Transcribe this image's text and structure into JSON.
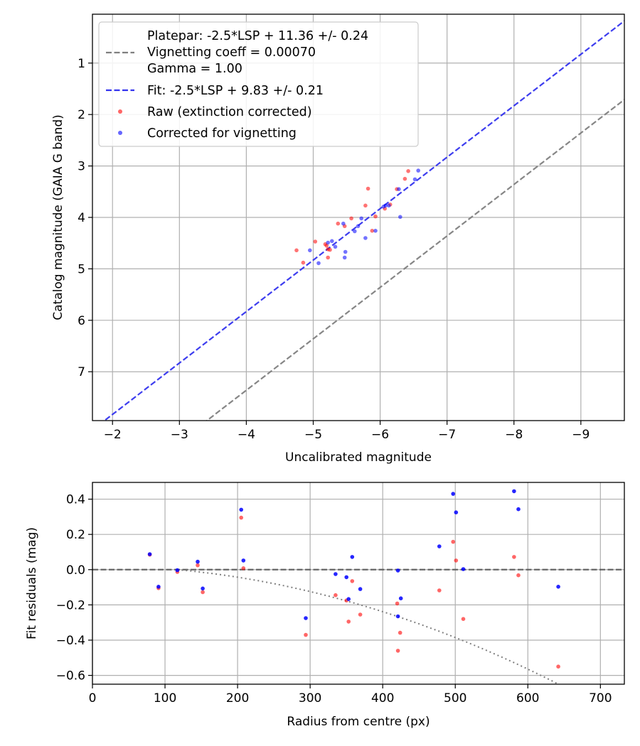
{
  "chart_data": [
    {
      "type": "scatter",
      "xlabel": "Uncalibrated magnitude",
      "ylabel": "Catalog magnitude (GAIA G band)",
      "xlim": [
        -1.7,
        -9.65
      ],
      "ylim": [
        7.95,
        0.05
      ],
      "xticks": [
        -2,
        -3,
        -4,
        -5,
        -6,
        -7,
        -8,
        -9
      ],
      "xtick_labels": [
        "−2",
        "−3",
        "−4",
        "−5",
        "−6",
        "−7",
        "−8",
        "−9"
      ],
      "yticks": [
        1,
        2,
        3,
        4,
        5,
        6,
        7
      ],
      "ytick_labels": [
        "1",
        "2",
        "3",
        "4",
        "5",
        "6",
        "7"
      ],
      "grid": true,
      "legend_position": "top-left",
      "legend": {
        "platepar_lines": [
          "Platepar: -2.5*LSP + 11.36 +/- 0.24",
          "Vignetting coeff = 0.00070",
          "Gamma = 1.00"
        ],
        "fit": "Fit: -2.5*LSP + 9.83 +/- 0.21",
        "raw": "Raw (extinction corrected)",
        "corrected": "Corrected for vignetting"
      },
      "lines": [
        {
          "name": "platepar",
          "slope": 1.0,
          "intercept": 11.36,
          "color": "#7f7f7f",
          "style": "dashed"
        },
        {
          "name": "fit",
          "slope": 1.0,
          "intercept": 9.83,
          "color": "#3333ee",
          "style": "dashed"
        }
      ],
      "series": [
        {
          "name": "Raw (extinction corrected)",
          "color": "#ff0000",
          "points": [
            [
              -4.75,
              4.64
            ],
            [
              -4.85,
              4.88
            ],
            [
              -5.03,
              4.47
            ],
            [
              -5.18,
              4.52
            ],
            [
              -5.2,
              4.55
            ],
            [
              -5.22,
              4.62
            ],
            [
              -5.22,
              4.78
            ],
            [
              -5.25,
              4.63
            ],
            [
              -5.37,
              4.12
            ],
            [
              -5.47,
              4.17
            ],
            [
              -5.57,
              4.02
            ],
            [
              -5.78,
              3.77
            ],
            [
              -5.82,
              3.44
            ],
            [
              -5.88,
              4.26
            ],
            [
              -5.93,
              3.98
            ],
            [
              -6.07,
              3.83
            ],
            [
              -6.15,
              3.75
            ],
            [
              -6.25,
              3.45
            ],
            [
              -6.37,
              3.25
            ],
            [
              -6.42,
              3.1
            ]
          ]
        },
        {
          "name": "Corrected for vignetting",
          "color": "#0000ff",
          "points": [
            [
              -4.95,
              4.64
            ],
            [
              -5.08,
              4.89
            ],
            [
              -5.22,
              4.49
            ],
            [
              -5.28,
              4.46
            ],
            [
              -5.33,
              4.57
            ],
            [
              -5.45,
              4.12
            ],
            [
              -5.48,
              4.67
            ],
            [
              -5.47,
              4.78
            ],
            [
              -5.62,
              4.27
            ],
            [
              -5.67,
              4.17
            ],
            [
              -5.72,
              4.02
            ],
            [
              -5.78,
              4.4
            ],
            [
              -5.93,
              4.26
            ],
            [
              -6.05,
              3.79
            ],
            [
              -6.08,
              3.77
            ],
            [
              -6.13,
              3.77
            ],
            [
              -6.28,
              3.45
            ],
            [
              -6.3,
              3.99
            ],
            [
              -6.52,
              3.26
            ],
            [
              -6.57,
              3.09
            ]
          ]
        }
      ]
    },
    {
      "type": "scatter",
      "xlabel": "Radius from centre (px)",
      "ylabel": "Fit residuals (mag)",
      "xlim": [
        0,
        733
      ],
      "ylim": [
        -0.65,
        0.495
      ],
      "xticks": [
        0,
        100,
        200,
        300,
        400,
        500,
        600,
        700
      ],
      "xtick_labels": [
        "0",
        "100",
        "200",
        "300",
        "400",
        "500",
        "600",
        "700"
      ],
      "yticks": [
        0.4,
        0.2,
        0.0,
        -0.2,
        -0.4,
        -0.6
      ],
      "ytick_labels": [
        "0.4",
        "0.2",
        "0.0",
        "−0.2",
        "−0.4",
        "−0.6"
      ],
      "grid": true,
      "lines": [
        {
          "name": "zero",
          "type": "horizontal",
          "y": 0.0,
          "color": "#555555",
          "style": "dashed"
        },
        {
          "name": "vignetting",
          "type": "curve",
          "coeff": 0.0007,
          "color": "#7f7f7f",
          "style": "dotted"
        }
      ],
      "series": [
        {
          "name": "Raw",
          "color": "#ff0000",
          "points": [
            [
              79,
              0.085
            ],
            [
              91,
              -0.105
            ],
            [
              117,
              -0.013
            ],
            [
              145,
              0.025
            ],
            [
              152,
              -0.128
            ],
            [
              205,
              0.295
            ],
            [
              208,
              0.008
            ],
            [
              294,
              -0.37
            ],
            [
              335,
              -0.145
            ],
            [
              350,
              -0.175
            ],
            [
              353,
              -0.295
            ],
            [
              358,
              -0.065
            ],
            [
              369,
              -0.255
            ],
            [
              420,
              -0.192
            ],
            [
              421,
              -0.46
            ],
            [
              424,
              -0.358
            ],
            [
              478,
              -0.118
            ],
            [
              497,
              0.158
            ],
            [
              501,
              0.052
            ],
            [
              511,
              -0.28
            ],
            [
              581,
              0.072
            ],
            [
              587,
              -0.032
            ],
            [
              642,
              -0.55
            ]
          ]
        },
        {
          "name": "Corrected",
          "color": "#0000ff",
          "points": [
            [
              79,
              0.088
            ],
            [
              91,
              -0.097
            ],
            [
              117,
              -0.003
            ],
            [
              145,
              0.045
            ],
            [
              152,
              -0.107
            ],
            [
              205,
              0.34
            ],
            [
              208,
              0.052
            ],
            [
              294,
              -0.275
            ],
            [
              335,
              -0.025
            ],
            [
              350,
              -0.043
            ],
            [
              353,
              -0.167
            ],
            [
              358,
              0.072
            ],
            [
              369,
              -0.11
            ],
            [
              421,
              -0.005
            ],
            [
              421,
              -0.265
            ],
            [
              425,
              -0.163
            ],
            [
              478,
              0.132
            ],
            [
              497,
              0.43
            ],
            [
              501,
              0.325
            ],
            [
              511,
              0.003
            ],
            [
              581,
              0.445
            ],
            [
              587,
              0.343
            ],
            [
              642,
              -0.097
            ]
          ]
        }
      ]
    }
  ]
}
